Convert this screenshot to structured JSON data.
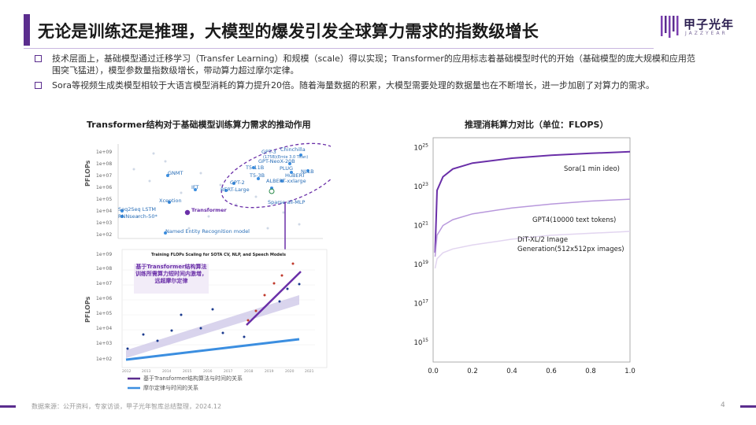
{
  "header": {
    "title": "无论是训练还是推理，大模型的爆发引发全球算力需求的指数级增长",
    "logo_text": "甲子光年",
    "logo_sub": "JAZZYEAR"
  },
  "bullets": [
    "技术层面上，基础模型通过迁移学习（Transfer Learning）和规模（scale）得以实现；Transformer的应用标志着基础模型时代的开始（基础模型的庞大规模和应用范围突飞猛进），模型参数量指数级增长，带动算力超过摩尔定律。",
    "Sora等视频生成类模型相较于大语言模型消耗的算力提升20倍。随着海量数据的积累，大模型需要处理的数据量也在不断增长，进一步加剧了对算力的需求。"
  ],
  "left_figure": {
    "title": "Transformer结构对于基础模型训练算力需求的推动作用",
    "top_plot": {
      "ylabel": "PFLOPs",
      "yticks": [
        "1e+09",
        "1e+08",
        "1e+07",
        "1e+06",
        "1e+05",
        "1e+04",
        "1e+03",
        "1e+02"
      ],
      "labels": {
        "gpt3": "GPT-3",
        "chinchilla": "Chinchilla",
        "ernie": "(175B)(Ernie 3.0 Titan)",
        "gptneox": "GPT-NeoX-20B",
        "t5_11b": "T5-11B",
        "plug": "PLUG",
        "nllb": "NLLB",
        "t5_3b": "T5-3B",
        "hubert": "HuBERT",
        "gpt2": "GPT-2",
        "albert": "ALBERT-xxlarge",
        "bert": "BERT-Large",
        "gnmt": "GNMT",
        "ift": "IFT",
        "xception": "Xception",
        "transformer": "Transformer",
        "sparse_mlp": "Sparse all-MLP",
        "seq2seq": "Seq2Seq LSTM",
        "rnnsearch": "RNNsearch-50*",
        "ner": "Named Entity Recognition model"
      }
    },
    "bottom_plot": {
      "title": "Training FLOPs Scaling for SOTA CV, NLP, and Speech Models",
      "ylabel": "PFLOPs",
      "yticks": [
        "1e+09",
        "1e+08",
        "1e+07",
        "1e+06",
        "1e+05",
        "1e+04",
        "1e+03",
        "1e+02"
      ],
      "xticks": [
        "2012",
        "2013",
        "2014",
        "2015",
        "2016",
        "2017",
        "2018",
        "2019",
        "2020",
        "2021"
      ],
      "annotation": "基于Transformer结构算法训练所需算力短时间内激增，远超摩尔定律",
      "legend": [
        {
          "label": "基于Transformer结构算法与时间的关系",
          "color": "#5b2d8e"
        },
        {
          "label": "摩尔定律与时间的关系",
          "color": "#3b8ee0"
        }
      ]
    }
  },
  "chart_data": {
    "type": "line",
    "title": "推理消耗算力对比（单位：FLOPS）",
    "xlim": [
      0,
      1.0
    ],
    "xticks": [
      "0.0",
      "0.2",
      "0.4",
      "0.6",
      "0.8",
      "1.0"
    ],
    "yscale": "log",
    "ylim_exp": [
      14,
      25.5
    ],
    "yticks_exp": [
      25,
      23,
      21,
      19,
      17,
      15
    ],
    "series": [
      {
        "name": "Sora(1 min ideo)",
        "color": "#6a2fa8",
        "x": [
          0.01,
          0.02,
          0.05,
          0.1,
          0.2,
          0.4,
          0.6,
          0.8,
          1.0
        ],
        "y_exp": [
          19.6,
          22.8,
          23.5,
          23.9,
          24.2,
          24.45,
          24.6,
          24.7,
          24.78
        ]
      },
      {
        "name": "GPT4(10000 text tokens)",
        "color": "#b898dc",
        "x": [
          0.01,
          0.02,
          0.05,
          0.1,
          0.2,
          0.4,
          0.6,
          0.8,
          1.0
        ],
        "y_exp": [
          19.4,
          20.5,
          21.0,
          21.3,
          21.6,
          21.9,
          22.1,
          22.25,
          22.35
        ]
      },
      {
        "name": "DiT-XL/2 Image Generation(512x512px images)",
        "color": "#e2d5f0",
        "x": [
          0.01,
          0.02,
          0.05,
          0.1,
          0.2,
          0.4,
          0.6,
          0.8,
          1.0
        ],
        "y_exp": [
          18.8,
          19.3,
          19.6,
          19.8,
          20.0,
          20.3,
          20.5,
          20.6,
          20.7
        ]
      }
    ]
  },
  "footer": {
    "source": "数据来源：公开资料，专家访谈，甲子光年智库总结整理，2024.12",
    "page": "4"
  },
  "colors": {
    "accent": "#5b2d8e",
    "moore": "#3b8ee0"
  }
}
